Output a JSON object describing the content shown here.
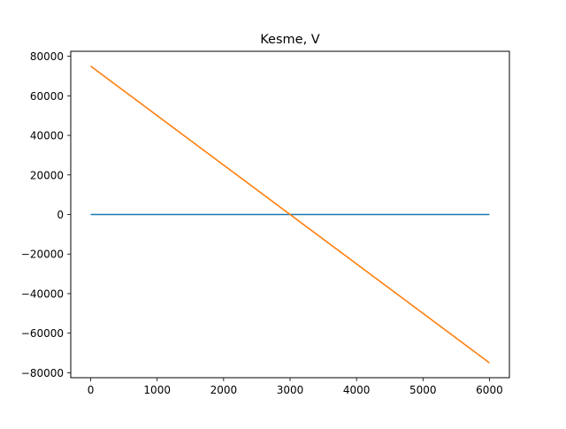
{
  "chart_data": {
    "type": "line",
    "title": "Kesme, V",
    "xlabel": "",
    "ylabel": "",
    "xlim": [
      -300,
      6300
    ],
    "ylim": [
      -82500,
      82500
    ],
    "xticks": [
      0,
      1000,
      2000,
      3000,
      4000,
      5000,
      6000
    ],
    "yticks": [
      -80000,
      -60000,
      -40000,
      -20000,
      0,
      20000,
      40000,
      60000,
      80000
    ],
    "grid": false,
    "legend": "none",
    "series": [
      {
        "color": "#1f77b4",
        "x": [
          0,
          6000
        ],
        "y": [
          0,
          0
        ]
      },
      {
        "color": "#ff7f0e",
        "x": [
          0,
          6000
        ],
        "y": [
          75000,
          -75000
        ]
      }
    ]
  }
}
